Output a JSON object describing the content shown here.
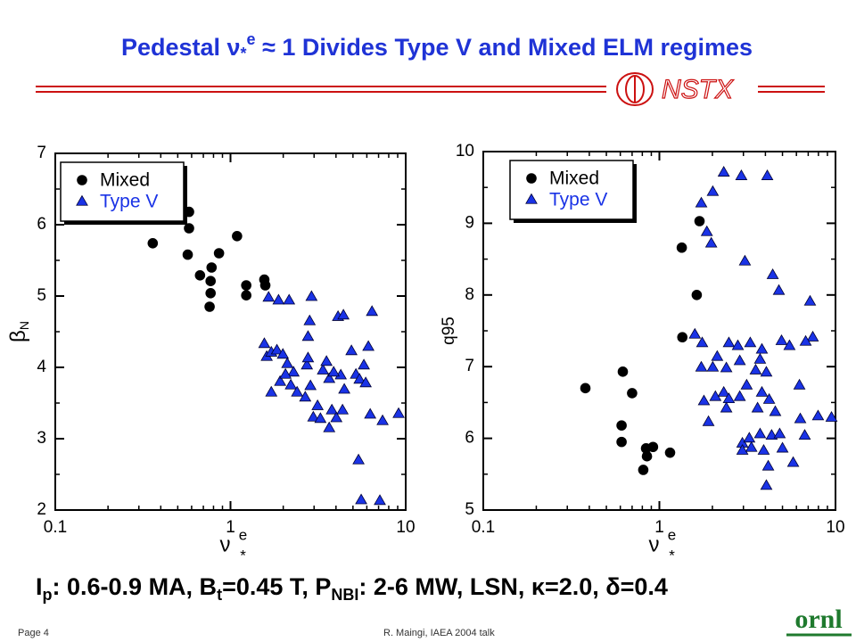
{
  "slide": {
    "title": {
      "pre": "Pedestal ",
      "nu": "ν",
      "sub": "*",
      "sup": "e",
      "post": " ≈ 1 Divides Type V and Mixed ELM regimes"
    },
    "logo": "NSTX",
    "conditions": [
      {
        "text": "I"
      },
      {
        "sub": "p"
      },
      {
        "text": ": 0.6-0.9 MA, B"
      },
      {
        "sub": "t"
      },
      {
        "text": "=0.45 T, P"
      },
      {
        "sub": "NBI"
      },
      {
        "text": ": 2-6 MW, LSN, κ=2.0, δ=0.4"
      }
    ],
    "page": "Page 4",
    "author": "R. Maingi, IAEA 2004 talk",
    "org_logo": "ornl"
  },
  "chart_data": [
    {
      "type": "scatter",
      "xlog": true,
      "legend": "upper left",
      "xlabel": {
        "base": "ν",
        "sup": "e",
        "sub": "*"
      },
      "ylabel": {
        "base": "β",
        "sub": "N"
      },
      "xlim": [
        0.1,
        10
      ],
      "xticks": [
        0.1,
        1,
        10
      ],
      "ylim": [
        2,
        7
      ],
      "yticks": [
        2,
        3,
        4,
        5,
        6,
        7
      ],
      "series": [
        {
          "name": "Mixed",
          "color": "#000000",
          "marker": "circle",
          "x": [
            0.36,
            0.58,
            0.58,
            0.57,
            0.67,
            0.78,
            0.77,
            0.77,
            0.76,
            0.86,
            1.09,
            1.23,
            1.23,
            1.56,
            1.58
          ],
          "values": [
            5.74,
            6.18,
            5.95,
            5.58,
            5.29,
            5.4,
            5.21,
            5.04,
            4.85,
            5.6,
            5.84,
            5.15,
            5.01,
            5.23,
            5.15
          ]
        },
        {
          "name": "Type V",
          "color": "#1a33e6",
          "marker": "triangle",
          "x": [
            1.65,
            1.88,
            2.16,
            2.9,
            1.56,
            1.61,
            1.71,
            1.84,
            1.99,
            2.11,
            2.29,
            1.71,
            1.92,
            2.06,
            2.21,
            2.4,
            2.67,
            2.86,
            2.73,
            2.77,
            2.77,
            2.83,
            2.97,
            3.14,
            3.26,
            3.37,
            3.53,
            3.66,
            3.66,
            3.79,
            4.02,
            4.26,
            3.88,
            4.36,
            4.46,
            4.11,
            4.41,
            4.9,
            5.2,
            5.45,
            5.77,
            5.91,
            6.12,
            6.42,
            5.38,
            5.57,
            7.12,
            6.27,
            7.38,
            9.11
          ],
          "values": [
            4.98,
            4.94,
            4.94,
            4.99,
            4.33,
            4.15,
            4.21,
            4.24,
            4.18,
            4.05,
            3.93,
            3.65,
            3.8,
            3.9,
            3.75,
            3.65,
            3.58,
            3.74,
            4.03,
            4.13,
            4.43,
            4.65,
            3.3,
            3.46,
            3.28,
            3.96,
            4.08,
            3.84,
            3.15,
            3.4,
            3.29,
            3.89,
            3.93,
            3.4,
            3.69,
            4.71,
            4.73,
            4.23,
            3.9,
            3.83,
            4.03,
            3.78,
            4.29,
            4.78,
            2.7,
            2.14,
            2.13,
            3.34,
            3.25,
            3.35
          ]
        }
      ]
    },
    {
      "type": "scatter",
      "xlog": true,
      "legend": "upper left",
      "xlabel": {
        "base": "ν",
        "sup": "e",
        "sub": "*"
      },
      "ylabel": "q95",
      "xlim": [
        0.1,
        10
      ],
      "xticks": [
        0.1,
        1,
        10
      ],
      "ylim": [
        5,
        10
      ],
      "yticks": [
        5,
        6,
        7,
        8,
        9,
        10
      ],
      "series": [
        {
          "name": "Mixed",
          "color": "#000000",
          "marker": "circle",
          "x": [
            0.38,
            0.62,
            0.7,
            0.61,
            0.61,
            0.84,
            0.85,
            0.92,
            0.81,
            1.15,
            1.34,
            1.69,
            1.63,
            1.35
          ],
          "values": [
            6.7,
            6.93,
            6.63,
            6.18,
            5.95,
            5.86,
            5.75,
            5.88,
            5.56,
            5.8,
            8.66,
            9.03,
            8.0,
            7.41
          ]
        },
        {
          "name": "Type V",
          "color": "#1a33e6",
          "marker": "triangle",
          "x": [
            2.32,
            2.92,
            4.1,
            2.01,
            1.73,
            1.86,
            1.97,
            3.06,
            4.4,
            4.77,
            7.17,
            1.59,
            1.75,
            2.13,
            2.48,
            2.79,
            3.28,
            3.82,
            3.73,
            4.94,
            5.48,
            7.43,
            6.77,
            1.73,
            2.01,
            2.4,
            2.86,
            3.52,
            4.05,
            1.79,
            2.08,
            2.32,
            2.48,
            2.86,
            3.13,
            3.82,
            4.2,
            6.24,
            1.9,
            2.4,
            3.61,
            4.55,
            6.31,
            7.96,
            9.49,
            2.96,
            3.24,
            3.73,
            4.34,
            6.69,
            2.96,
            3.33,
            3.91,
            4.15,
            5.0,
            4.05,
            5.75,
            4.82
          ],
          "values": [
            9.71,
            9.66,
            9.66,
            9.44,
            9.28,
            8.88,
            8.72,
            8.47,
            8.28,
            8.06,
            7.91,
            7.45,
            7.33,
            7.14,
            7.33,
            7.29,
            7.33,
            7.24,
            7.1,
            7.36,
            7.29,
            7.41,
            7.35,
            6.99,
            6.99,
            6.98,
            7.08,
            6.95,
            6.92,
            6.52,
            6.58,
            6.64,
            6.55,
            6.58,
            6.74,
            6.64,
            6.54,
            6.74,
            6.23,
            6.42,
            6.42,
            6.37,
            6.27,
            6.31,
            6.29,
            5.93,
            6.0,
            6.06,
            6.04,
            6.04,
            5.83,
            5.87,
            5.83,
            5.61,
            5.86,
            5.34,
            5.66,
            6.06
          ]
        }
      ]
    }
  ]
}
